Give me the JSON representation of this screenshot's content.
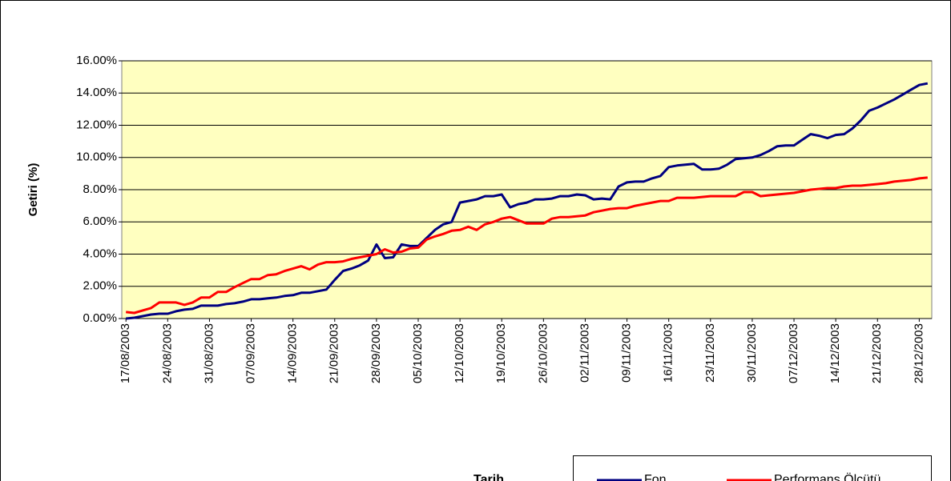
{
  "chart_data": {
    "type": "line",
    "y_label": "Getiri (%)",
    "x_label": "Tarih",
    "categories": [
      "17/08/2003",
      null,
      null,
      null,
      null,
      "24/08/2003",
      null,
      null,
      null,
      null,
      "31/08/2003",
      null,
      null,
      null,
      null,
      "07/09/2003",
      null,
      null,
      null,
      null,
      "14/09/2003",
      null,
      null,
      null,
      null,
      "21/09/2003",
      null,
      null,
      null,
      null,
      "28/09/2003",
      null,
      null,
      null,
      null,
      "05/10/2003",
      null,
      null,
      null,
      null,
      "12/10/2003",
      null,
      null,
      null,
      null,
      "19/10/2003",
      null,
      null,
      null,
      null,
      "26/10/2003",
      null,
      null,
      null,
      null,
      "02/11/2003",
      null,
      null,
      null,
      null,
      "09/11/2003",
      null,
      null,
      null,
      null,
      "16/11/2003",
      null,
      null,
      null,
      null,
      "23/11/2003",
      null,
      null,
      null,
      null,
      "30/11/2003",
      null,
      null,
      null,
      null,
      "07/12/2003",
      null,
      null,
      null,
      null,
      "14/12/2003",
      null,
      null,
      null,
      null,
      "21/12/2003",
      null,
      null,
      null,
      null,
      "28/12/2003",
      null
    ],
    "series": [
      {
        "name": "Fon",
        "color": "#000080",
        "values": [
          0.0,
          0.05,
          0.15,
          0.25,
          0.3,
          0.3,
          0.45,
          0.55,
          0.6,
          0.8,
          0.8,
          0.8,
          0.9,
          0.95,
          1.05,
          1.2,
          1.2,
          1.25,
          1.3,
          1.4,
          1.45,
          1.6,
          1.6,
          1.7,
          1.8,
          2.4,
          2.95,
          3.1,
          3.3,
          3.6,
          4.6,
          3.75,
          3.8,
          4.6,
          4.5,
          4.5,
          5.0,
          5.5,
          5.85,
          6.0,
          7.2,
          7.3,
          7.4,
          7.6,
          7.6,
          7.7,
          6.9,
          7.1,
          7.2,
          7.4,
          7.4,
          7.45,
          7.6,
          7.6,
          7.7,
          7.65,
          7.4,
          7.45,
          7.4,
          8.2,
          8.45,
          8.5,
          8.5,
          8.7,
          8.85,
          9.4,
          9.5,
          9.55,
          9.6,
          9.25,
          9.25,
          9.3,
          9.55,
          9.9,
          9.95,
          10.0,
          10.15,
          10.4,
          10.7,
          10.75,
          10.75,
          11.1,
          11.45,
          11.35,
          11.2,
          11.4,
          11.45,
          11.8,
          12.3,
          12.9,
          13.1,
          13.35,
          13.6,
          13.9,
          14.2,
          14.5,
          14.6
        ]
      },
      {
        "name": "Performans Ölçütü",
        "color": "#ff0000",
        "values": [
          0.4,
          0.35,
          0.5,
          0.65,
          1.0,
          1.0,
          1.0,
          0.85,
          1.0,
          1.3,
          1.3,
          1.65,
          1.65,
          1.95,
          2.2,
          2.45,
          2.45,
          2.7,
          2.75,
          2.95,
          3.1,
          3.25,
          3.05,
          3.35,
          3.5,
          3.5,
          3.55,
          3.7,
          3.8,
          3.9,
          4.0,
          4.3,
          4.1,
          4.15,
          4.35,
          4.4,
          4.9,
          5.1,
          5.25,
          5.45,
          5.5,
          5.7,
          5.5,
          5.85,
          6.0,
          6.2,
          6.3,
          6.1,
          5.9,
          5.9,
          5.9,
          6.2,
          6.3,
          6.3,
          6.35,
          6.4,
          6.6,
          6.7,
          6.8,
          6.85,
          6.85,
          7.0,
          7.1,
          7.2,
          7.3,
          7.3,
          7.5,
          7.5,
          7.5,
          7.55,
          7.6,
          7.6,
          7.6,
          7.6,
          7.85,
          7.85,
          7.6,
          7.65,
          7.7,
          7.75,
          7.8,
          7.9,
          8.0,
          8.05,
          8.1,
          8.1,
          8.2,
          8.25,
          8.25,
          8.3,
          8.35,
          8.4,
          8.5,
          8.55,
          8.6,
          8.7,
          8.75
        ]
      }
    ],
    "ylim": [
      0,
      16
    ],
    "yticks": [
      {
        "value": 0,
        "label": "0.00%"
      },
      {
        "value": 2,
        "label": "2.00%"
      },
      {
        "value": 4,
        "label": "4.00%"
      },
      {
        "value": 6,
        "label": "6.00%"
      },
      {
        "value": 8,
        "label": "8.00%"
      },
      {
        "value": 10,
        "label": "10.00%"
      },
      {
        "value": 12,
        "label": "12.00%"
      },
      {
        "value": 14,
        "label": "14.00%"
      },
      {
        "value": 16,
        "label": "16.00%"
      }
    ],
    "grid": true,
    "plot_background": "#ffffc0"
  }
}
